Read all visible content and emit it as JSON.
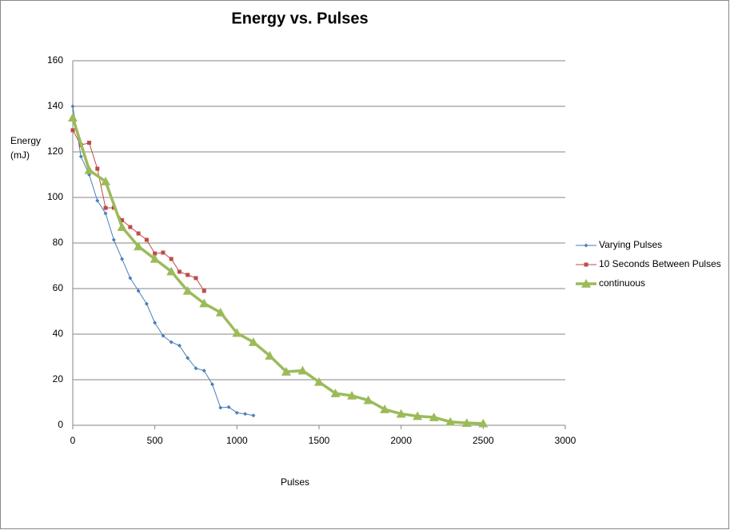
{
  "chart_data": {
    "type": "line",
    "title": "Energy vs. Pulses",
    "x_label": "Pulses",
    "y_label": [
      "Energy",
      "(mJ)"
    ],
    "xlim": [
      0,
      3000
    ],
    "xticks": [
      0,
      500,
      1000,
      1500,
      2000,
      2500,
      3000
    ],
    "ylim": [
      0,
      160
    ],
    "yticks": [
      0,
      20,
      40,
      60,
      80,
      100,
      120,
      140,
      160
    ],
    "grid": true,
    "legend": "right",
    "series": [
      {
        "name": "Varying Pulses",
        "color": "#4a7ebb",
        "marker": "diamond",
        "width": 1,
        "x": [
          0,
          50,
          100,
          150,
          200,
          250,
          300,
          350,
          400,
          450,
          500,
          550,
          600,
          650,
          700,
          750,
          800,
          850,
          900,
          950,
          1000,
          1050,
          1100
        ],
        "values": [
          140,
          118,
          110,
          98.6,
          93,
          81.4,
          73,
          64.6,
          59,
          53.3,
          45,
          39.3,
          36.5,
          35,
          29.5,
          25,
          24,
          18,
          7.7,
          8,
          5.5,
          5,
          4.3
        ]
      },
      {
        "name": "10 Seconds Between Pulses",
        "color": "#be4b48",
        "marker": "square",
        "width": 1,
        "x": [
          0,
          50,
          100,
          150,
          200,
          250,
          300,
          350,
          400,
          450,
          500,
          550,
          600,
          650,
          700,
          750,
          800
        ],
        "values": [
          129.5,
          123,
          124,
          112.6,
          95.4,
          95.5,
          90,
          87,
          84.2,
          81.4,
          75.4,
          75.8,
          73,
          67.4,
          66,
          64.6,
          59
        ]
      },
      {
        "name": "continuous",
        "color": "#9bbb59",
        "marker": "triangle",
        "width": 3.5,
        "x": [
          0,
          100,
          200,
          300,
          400,
          500,
          600,
          700,
          800,
          900,
          1000,
          1100,
          1200,
          1300,
          1400,
          1500,
          1600,
          1700,
          1800,
          1900,
          2000,
          2100,
          2200,
          2300,
          2400,
          2500
        ],
        "values": [
          135,
          112,
          107,
          87,
          78.5,
          73,
          67.5,
          59,
          53.5,
          49.5,
          40.5,
          36.5,
          30.5,
          23.5,
          24,
          19,
          14,
          13,
          11,
          7,
          5,
          4,
          3.5,
          1.5,
          1,
          0.8
        ]
      }
    ]
  }
}
